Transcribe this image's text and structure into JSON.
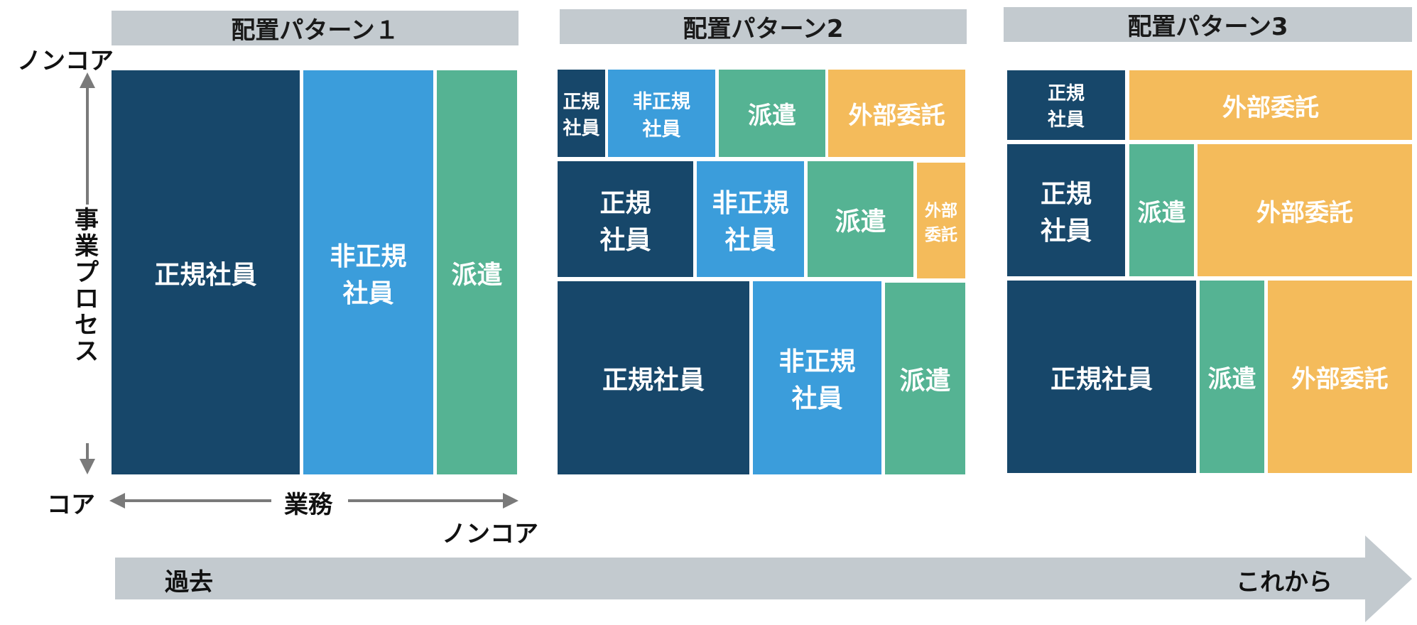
{
  "palette": {
    "regular": "#17476a",
    "non_regular": "#3b9ddb",
    "dispatch": "#55b393",
    "outsourcing": "#f4bb5b",
    "header_bg": "#c3cacf",
    "axis_arrow": "#7a7a7a",
    "timeline_arrow": "#c3cacf"
  },
  "axes": {
    "y_top": "ノンコア",
    "y_label": "事業プロセス",
    "x_origin": "コア",
    "x_label": "業務",
    "x_end": "ノンコア"
  },
  "patterns": [
    {
      "title": "配置パターン１",
      "cells": [
        {
          "text": "正規社員",
          "kind": "regular"
        },
        {
          "text": "非正規\n社員",
          "kind": "non_regular"
        },
        {
          "text": "派遣",
          "kind": "dispatch"
        }
      ]
    },
    {
      "title": "配置パターン2",
      "cells": [
        {
          "text": "正規\n社員",
          "kind": "regular"
        },
        {
          "text": "非正規\n社員",
          "kind": "non_regular"
        },
        {
          "text": "派遣",
          "kind": "dispatch"
        },
        {
          "text": "外部委託",
          "kind": "outsourcing"
        },
        {
          "text": "正規\n社員",
          "kind": "regular"
        },
        {
          "text": "非正規\n社員",
          "kind": "non_regular"
        },
        {
          "text": "派遣",
          "kind": "dispatch"
        },
        {
          "text": "外部\n委託",
          "kind": "outsourcing"
        },
        {
          "text": "正規社員",
          "kind": "regular"
        },
        {
          "text": "非正規\n社員",
          "kind": "non_regular"
        },
        {
          "text": "派遣",
          "kind": "dispatch"
        }
      ]
    },
    {
      "title": "配置パターン3",
      "cells": [
        {
          "text": "正規\n社員",
          "kind": "regular"
        },
        {
          "text": "外部委託",
          "kind": "outsourcing"
        },
        {
          "text": "正規\n社員",
          "kind": "regular"
        },
        {
          "text": "派遣",
          "kind": "dispatch"
        },
        {
          "text": "外部委託",
          "kind": "outsourcing"
        },
        {
          "text": "正規社員",
          "kind": "regular"
        },
        {
          "text": "派遣",
          "kind": "dispatch"
        },
        {
          "text": "外部委託",
          "kind": "outsourcing"
        }
      ]
    }
  ],
  "timeline": {
    "start": "過去",
    "end": "これから"
  }
}
